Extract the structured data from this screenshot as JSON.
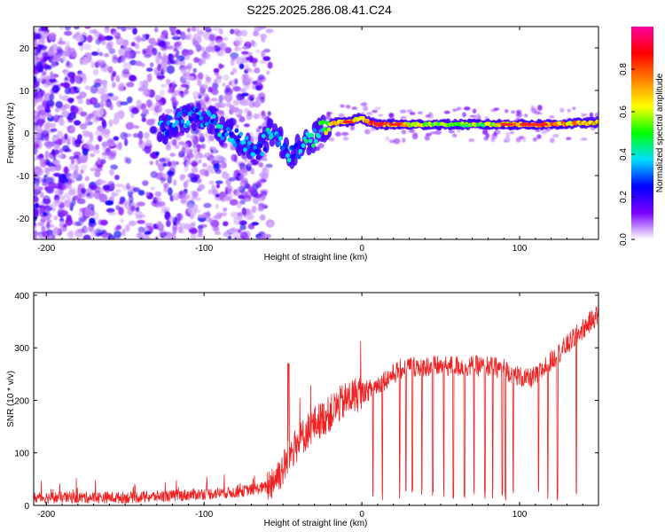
{
  "title": "S225.2025.286.08.41.C24",
  "chart_data": [
    {
      "type": "heatmap",
      "title": "S225.2025.286.08.41.C24",
      "xlabel": "Height of straight line (km)",
      "ylabel": "Frequency (Hz)",
      "xlim": [
        -208,
        150
      ],
      "ylim": [
        -25,
        25
      ],
      "xticks": [
        -200,
        -100,
        0,
        100
      ],
      "yticks": [
        -20,
        -10,
        0,
        10,
        20
      ],
      "xtick_labels": [
        "-200",
        "-100",
        "0",
        "100"
      ],
      "ytick_labels": [
        "-20",
        "-10",
        "0",
        "10",
        "20"
      ],
      "colorbar": {
        "label": "Normalized spectral amplitude",
        "range": [
          0,
          1
        ],
        "ticks": [
          0.0,
          0.2,
          0.4,
          0.6,
          0.8
        ],
        "tick_labels": [
          "0.0",
          "0.2",
          "0.4",
          "0.6",
          "0.8"
        ],
        "colors": [
          "#ffffff",
          "#7a00ff",
          "#0000ff",
          "#00e0ff",
          "#00ff00",
          "#ffff00",
          "#ff8000",
          "#ff0000",
          "#ff00a0"
        ]
      },
      "signal_track": {
        "x": [
          -125,
          -115,
          -105,
          -95,
          -90,
          -80,
          -70,
          -65,
          -58,
          -52,
          -45,
          -40,
          -35,
          -30,
          -25,
          -20,
          -15,
          -10,
          -5,
          0,
          5,
          10,
          20,
          40,
          60,
          80,
          100,
          120,
          150
        ],
        "y": [
          1,
          3,
          4,
          3,
          1,
          -1,
          -3,
          -4,
          0,
          -2,
          -5,
          -4,
          -2,
          -1,
          1,
          2,
          2.5,
          2.5,
          3,
          3.5,
          2.5,
          2,
          2,
          2,
          2,
          2,
          2,
          2,
          2.5
        ],
        "amplitude": [
          0.35,
          0.3,
          0.35,
          0.3,
          0.4,
          0.3,
          0.35,
          0.3,
          0.4,
          0.35,
          0.35,
          0.3,
          0.4,
          0.45,
          0.5,
          0.7,
          0.75,
          0.7,
          0.8,
          0.6,
          0.85,
          0.95,
          0.8,
          0.6,
          0.55,
          0.6,
          0.75,
          0.8,
          0.7
        ]
      }
    },
    {
      "type": "line",
      "xlabel": "Height of straight line (km)",
      "ylabel": "SNR (10 * v/v)",
      "xlim": [
        -208,
        150
      ],
      "ylim": [
        0,
        405
      ],
      "xticks": [
        -200,
        -100,
        0,
        100
      ],
      "yticks": [
        0,
        100,
        200,
        300,
        400
      ],
      "xtick_labels": [
        "-200",
        "-100",
        "0",
        "100"
      ],
      "ytick_labels": [
        "0",
        "100",
        "200",
        "300",
        "400"
      ],
      "color": "#ee2222",
      "series": [
        {
          "name": "SNR",
          "x": [
            -208,
            -180,
            -150,
            -120,
            -100,
            -80,
            -70,
            -60,
            -50,
            -45,
            -40,
            -35,
            -30,
            -25,
            -20,
            -15,
            -10,
            -5,
            0,
            5,
            10,
            15,
            20,
            25,
            30,
            40,
            50,
            60,
            70,
            80,
            90,
            100,
            105,
            110,
            120,
            130,
            140,
            150
          ],
          "y": [
            15,
            15,
            15,
            18,
            22,
            25,
            30,
            35,
            70,
            100,
            120,
            140,
            155,
            165,
            175,
            190,
            200,
            210,
            215,
            220,
            230,
            240,
            250,
            260,
            265,
            265,
            265,
            265,
            265,
            265,
            260,
            245,
            240,
            245,
            275,
            305,
            335,
            365
          ],
          "dropouts": [
            7,
            13,
            24,
            28,
            32,
            38,
            45,
            52,
            58,
            65,
            71,
            78,
            83,
            89,
            91,
            96,
            112,
            118,
            124,
            136
          ]
        }
      ]
    }
  ]
}
